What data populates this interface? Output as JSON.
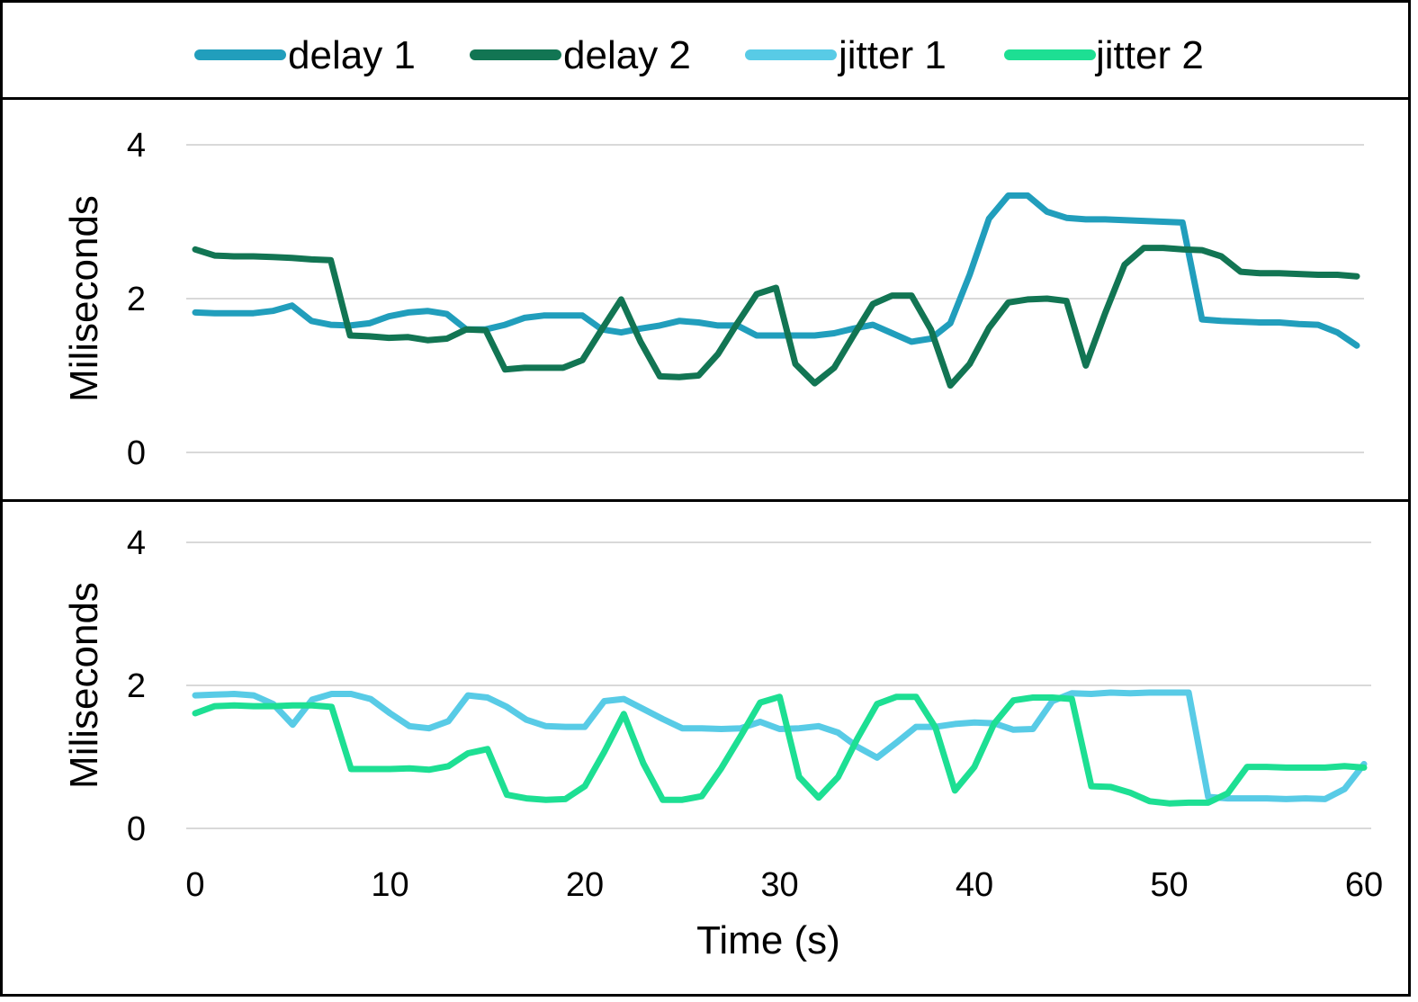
{
  "legend": [
    {
      "label": "delay 1",
      "color": "#219ebc"
    },
    {
      "label": "delay 2",
      "color": "#127553"
    },
    {
      "label": "jitter 1",
      "color": "#58cbe6"
    },
    {
      "label": "jitter 2",
      "color": "#1ddf93"
    }
  ],
  "chart_data": [
    {
      "type": "line",
      "title": "",
      "xlabel": "",
      "ylabel": "Miliseconds",
      "xlim": [
        0,
        60
      ],
      "ylim": [
        0,
        4
      ],
      "yticks": [
        0,
        2,
        4
      ],
      "grid": true,
      "legend_position": "top",
      "x": [
        0,
        1,
        2,
        3,
        4,
        5,
        6,
        7,
        8,
        9,
        10,
        11,
        12,
        13,
        14,
        15,
        16,
        17,
        18,
        19,
        20,
        21,
        22,
        23,
        24,
        25,
        26,
        27,
        28,
        29,
        30,
        31,
        32,
        33,
        34,
        35,
        36,
        37,
        38,
        39,
        40,
        41,
        42,
        43,
        44,
        45,
        46,
        47,
        48,
        49,
        50,
        51,
        52,
        53,
        54,
        55,
        56,
        57,
        58,
        59,
        60
      ],
      "series": [
        {
          "name": "delay 1",
          "color": "#219ebc",
          "values": [
            1.82,
            1.81,
            1.81,
            1.81,
            1.84,
            1.91,
            1.71,
            1.66,
            1.65,
            1.68,
            1.77,
            1.82,
            1.84,
            1.8,
            1.6,
            1.6,
            1.66,
            1.75,
            1.78,
            1.78,
            1.78,
            1.6,
            1.56,
            1.61,
            1.65,
            1.71,
            1.69,
            1.65,
            1.65,
            1.52,
            1.52,
            1.52,
            1.52,
            1.55,
            1.61,
            1.66,
            1.55,
            1.44,
            1.48,
            1.68,
            2.31,
            3.04,
            3.34,
            3.34,
            3.13,
            3.05,
            3.03,
            3.03,
            3.02,
            3.01,
            3.0,
            2.99,
            1.73,
            1.71,
            1.7,
            1.69,
            1.69,
            1.67,
            1.66,
            1.56,
            1.39
          ]
        },
        {
          "name": "delay 2",
          "color": "#127553",
          "values": [
            2.64,
            2.56,
            2.55,
            2.55,
            2.54,
            2.53,
            2.51,
            2.5,
            1.52,
            1.51,
            1.49,
            1.5,
            1.46,
            1.48,
            1.6,
            1.59,
            1.08,
            1.1,
            1.1,
            1.1,
            1.2,
            1.6,
            1.99,
            1.44,
            0.99,
            0.98,
            1.0,
            1.28,
            1.68,
            2.06,
            2.14,
            1.15,
            0.9,
            1.1,
            1.52,
            1.93,
            2.04,
            2.04,
            1.6,
            0.87,
            1.15,
            1.62,
            1.95,
            1.99,
            2.0,
            1.97,
            1.13,
            1.81,
            2.44,
            2.66,
            2.66,
            2.64,
            2.63,
            2.55,
            2.35,
            2.33,
            2.33,
            2.32,
            2.31,
            2.31,
            2.29
          ]
        }
      ]
    },
    {
      "type": "line",
      "title": "",
      "xlabel": "Time (s)",
      "ylabel": "Miliseconds",
      "xlim": [
        0,
        60
      ],
      "ylim": [
        0,
        4
      ],
      "xticks": [
        0,
        10,
        20,
        30,
        40,
        50,
        60
      ],
      "yticks": [
        0,
        2,
        4
      ],
      "grid": true,
      "legend_position": "top",
      "x": [
        0,
        1,
        2,
        3,
        4,
        5,
        6,
        7,
        8,
        9,
        10,
        11,
        12,
        13,
        14,
        15,
        16,
        17,
        18,
        19,
        20,
        21,
        22,
        23,
        24,
        25,
        26,
        27,
        28,
        29,
        30,
        31,
        32,
        33,
        34,
        35,
        36,
        37,
        38,
        39,
        40,
        41,
        42,
        43,
        44,
        45,
        46,
        47,
        48,
        49,
        50,
        51,
        52,
        53,
        54,
        55,
        56,
        57,
        58,
        59,
        60
      ],
      "series": [
        {
          "name": "jitter 1",
          "color": "#58cbe6",
          "values": [
            1.86,
            1.87,
            1.88,
            1.86,
            1.74,
            1.45,
            1.8,
            1.88,
            1.88,
            1.81,
            1.61,
            1.43,
            1.4,
            1.5,
            1.86,
            1.83,
            1.7,
            1.52,
            1.43,
            1.42,
            1.42,
            1.78,
            1.81,
            1.67,
            1.53,
            1.4,
            1.4,
            1.39,
            1.4,
            1.49,
            1.39,
            1.4,
            1.43,
            1.34,
            1.14,
            0.99,
            1.2,
            1.42,
            1.42,
            1.46,
            1.48,
            1.47,
            1.38,
            1.39,
            1.78,
            1.89,
            1.88,
            1.9,
            1.89,
            1.9,
            1.9,
            1.9,
            0.44,
            0.42,
            0.42,
            0.42,
            0.41,
            0.42,
            0.41,
            0.55,
            0.9
          ]
        },
        {
          "name": "jitter 2",
          "color": "#1ddf93",
          "values": [
            1.61,
            1.71,
            1.72,
            1.71,
            1.71,
            1.72,
            1.72,
            1.7,
            0.83,
            0.83,
            0.83,
            0.84,
            0.82,
            0.87,
            1.05,
            1.11,
            0.47,
            0.42,
            0.4,
            0.41,
            0.59,
            1.07,
            1.6,
            0.91,
            0.4,
            0.4,
            0.45,
            0.84,
            1.29,
            1.76,
            1.84,
            0.72,
            0.43,
            0.72,
            1.26,
            1.74,
            1.84,
            1.84,
            1.41,
            0.53,
            0.86,
            1.46,
            1.79,
            1.83,
            1.83,
            1.81,
            0.59,
            0.58,
            0.5,
            0.38,
            0.35,
            0.36,
            0.36,
            0.49,
            0.86,
            0.86,
            0.85,
            0.85,
            0.85,
            0.87,
            0.85
          ]
        }
      ]
    }
  ]
}
